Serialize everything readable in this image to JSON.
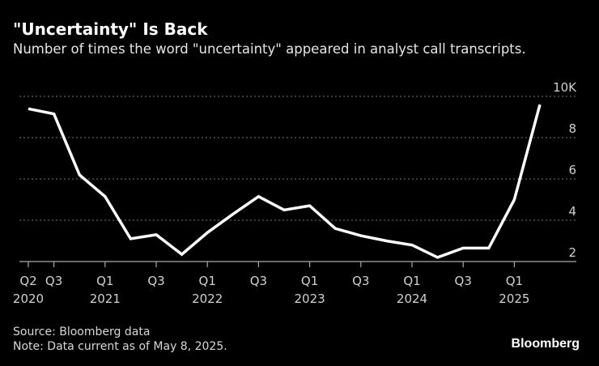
{
  "title": "\"Uncertainty\" Is Back",
  "subtitle": "Number of times the word \"uncertainty\" appeared in analyst call transcripts.",
  "source": "Source: Bloomberg data",
  "note": "Note: Data current as of May 8, 2025.",
  "logo": "Bloomberg",
  "colors": {
    "background": "#000000",
    "line": "#ffffff",
    "grid": "#777777"
  },
  "chart_data": {
    "type": "line",
    "title": "\"Uncertainty\" Is Back",
    "ylim": [
      2,
      10
    ],
    "y_ticks": [
      {
        "v": 2,
        "label": "2"
      },
      {
        "v": 4,
        "label": "4"
      },
      {
        "v": 6,
        "label": "6"
      },
      {
        "v": 8,
        "label": "8"
      },
      {
        "v": 10,
        "label": "10K"
      }
    ],
    "y_unit": "thousands",
    "grid": true,
    "x": [
      "Q2 2020",
      "Q3 2020",
      "Q4 2020",
      "Q1 2021",
      "Q2 2021",
      "Q3 2021",
      "Q4 2021",
      "Q1 2022",
      "Q2 2022",
      "Q3 2022",
      "Q4 2022",
      "Q1 2023",
      "Q2 2023",
      "Q3 2023",
      "Q4 2023",
      "Q1 2024",
      "Q2 2024",
      "Q3 2024",
      "Q4 2024",
      "Q1 2025",
      "Q2 2025"
    ],
    "values": [
      9.4,
      9.15,
      6.2,
      5.15,
      3.1,
      3.3,
      2.35,
      3.4,
      4.3,
      5.15,
      4.5,
      4.7,
      3.6,
      3.25,
      3.0,
      2.8,
      2.2,
      2.65,
      2.65,
      5.0,
      9.6
    ],
    "x_ticks": [
      {
        "i": 0,
        "q": "Q2",
        "year": "2020"
      },
      {
        "i": 1,
        "q": "Q3",
        "year": ""
      },
      {
        "i": 3,
        "q": "Q1",
        "year": "2021"
      },
      {
        "i": 5,
        "q": "Q3",
        "year": ""
      },
      {
        "i": 7,
        "q": "Q1",
        "year": "2022"
      },
      {
        "i": 9,
        "q": "Q3",
        "year": ""
      },
      {
        "i": 11,
        "q": "Q1",
        "year": "2023"
      },
      {
        "i": 13,
        "q": "Q3",
        "year": ""
      },
      {
        "i": 15,
        "q": "Q1",
        "year": "2024"
      },
      {
        "i": 17,
        "q": "Q3",
        "year": ""
      },
      {
        "i": 19,
        "q": "Q1",
        "year": "2025"
      }
    ]
  }
}
